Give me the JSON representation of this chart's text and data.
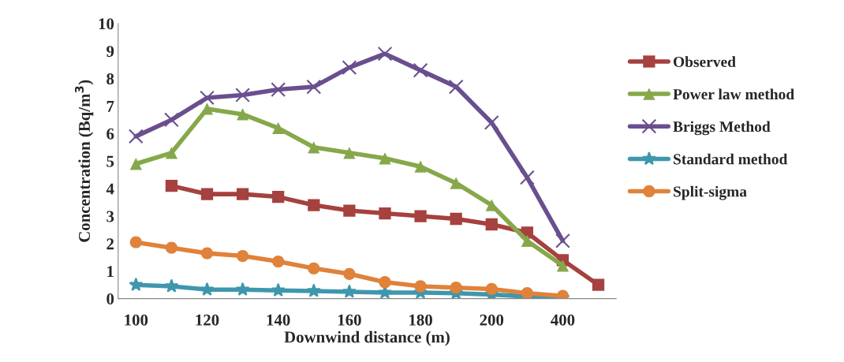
{
  "chart_data": {
    "type": "line",
    "xlabel": "Downwind distance (m)",
    "ylabel": "Concentration (Bq/m$^{3}$)",
    "categories": [
      "100",
      null,
      "120",
      null,
      "140",
      null,
      "160",
      null,
      "180",
      null,
      "200",
      null,
      "400",
      null
    ],
    "ylim": [
      0,
      10
    ],
    "yticks": [
      0,
      1,
      2,
      3,
      4,
      5,
      6,
      7,
      8,
      9,
      10
    ],
    "grid": false,
    "legend": "right",
    "series": [
      {
        "name": "Observed",
        "color": "#a5413f",
        "marker": "square",
        "values": [
          null,
          4.1,
          3.8,
          3.8,
          3.7,
          3.4,
          3.2,
          3.1,
          3.0,
          2.9,
          2.7,
          2.4,
          1.4,
          0.5
        ]
      },
      {
        "name": "Power law method",
        "color": "#86a84a",
        "marker": "triangle",
        "values": [
          4.9,
          5.3,
          6.9,
          6.7,
          6.2,
          5.5,
          5.3,
          5.1,
          4.8,
          4.2,
          3.4,
          2.1,
          1.2,
          null
        ]
      },
      {
        "name": "Briggs Method",
        "color": "#6a4f8f",
        "marker": "cross",
        "values": [
          5.9,
          6.5,
          7.3,
          7.4,
          7.6,
          7.7,
          8.4,
          8.9,
          8.3,
          7.7,
          6.4,
          4.4,
          2.1,
          null
        ]
      },
      {
        "name": "Standard method",
        "color": "#3f97ad",
        "marker": "star",
        "values": [
          0.5,
          0.45,
          0.33,
          0.33,
          0.3,
          0.28,
          0.25,
          0.22,
          0.22,
          0.2,
          0.15,
          0.08,
          0.03,
          null
        ]
      },
      {
        "name": "Split-sigma",
        "color": "#e0823a",
        "marker": "circle",
        "values": [
          2.05,
          1.85,
          1.65,
          1.55,
          1.35,
          1.1,
          0.9,
          0.6,
          0.45,
          0.4,
          0.35,
          0.2,
          0.1,
          null
        ]
      }
    ]
  }
}
